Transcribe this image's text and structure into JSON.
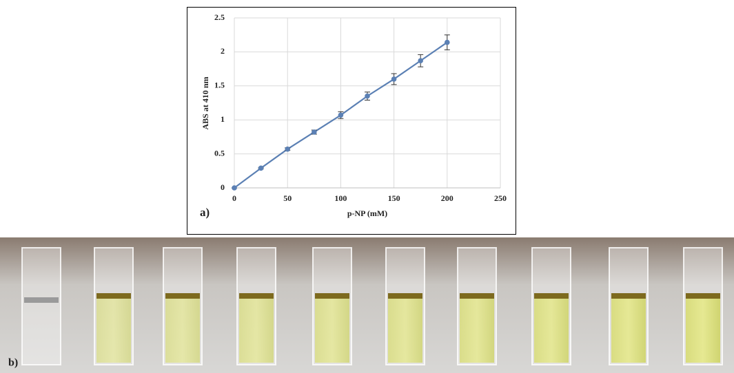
{
  "chart_data": {
    "type": "line",
    "panel_label": "a)",
    "x_label": "p-NP (mM)",
    "y_label": "ABS at 410 nm",
    "x": [
      0,
      25,
      50,
      75,
      100,
      125,
      150,
      175,
      200
    ],
    "series": [
      {
        "color": "#5b80b4",
        "values": [
          0,
          0.29,
          0.57,
          0.82,
          1.07,
          1.35,
          1.6,
          1.87,
          2.14
        ],
        "errors": [
          0,
          0.01,
          0.02,
          0.03,
          0.05,
          0.06,
          0.08,
          0.09,
          0.11
        ]
      }
    ],
    "xlim": [
      0,
      250
    ],
    "xticks": [
      0,
      50,
      100,
      150,
      200,
      250
    ],
    "ylim": [
      0,
      2.5
    ],
    "yticks": [
      0,
      0.5,
      1,
      1.5,
      2,
      2.5
    ],
    "grid": true
  },
  "photo": {
    "panel_label": "b)"
  }
}
